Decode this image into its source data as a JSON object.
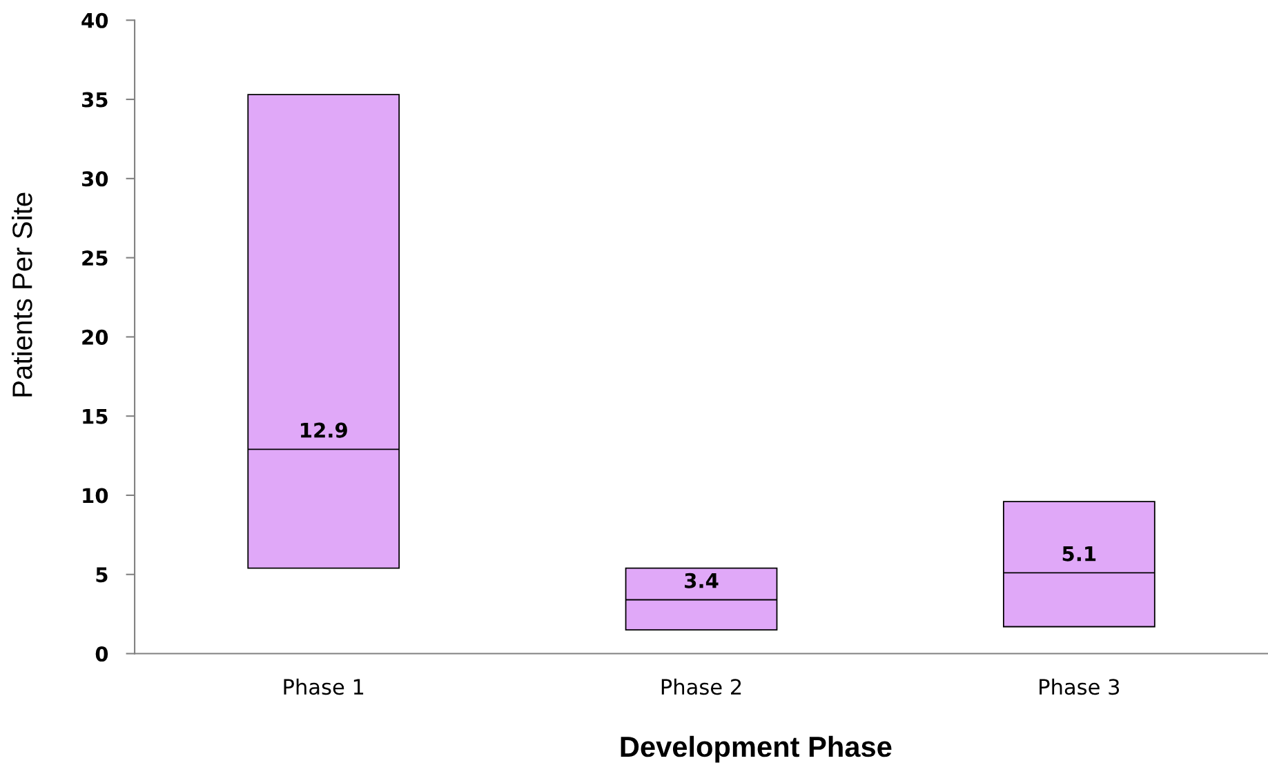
{
  "chart_data": {
    "type": "box",
    "xlabel": "Development Phase",
    "ylabel": "Patients Per Site",
    "categories": [
      "Phase 1",
      "Phase 2",
      "Phase 3"
    ],
    "series": [
      {
        "color": "#e0a8f8",
        "boxes": [
          {
            "low": 5.4,
            "q1": 5.4,
            "median": 12.9,
            "q3": 35.3,
            "high": 35.3
          },
          {
            "low": 1.5,
            "q1": 1.5,
            "median": 3.4,
            "q3": 5.4,
            "high": 5.4
          },
          {
            "low": 1.7,
            "q1": 1.7,
            "median": 5.1,
            "q3": 9.6,
            "high": 9.6
          }
        ],
        "value_labels": [
          "12.9",
          "3.4",
          "5.1"
        ]
      }
    ],
    "ylim": [
      0,
      40
    ],
    "yticks": [
      0,
      5,
      10,
      15,
      20,
      25,
      30,
      35,
      40
    ]
  }
}
